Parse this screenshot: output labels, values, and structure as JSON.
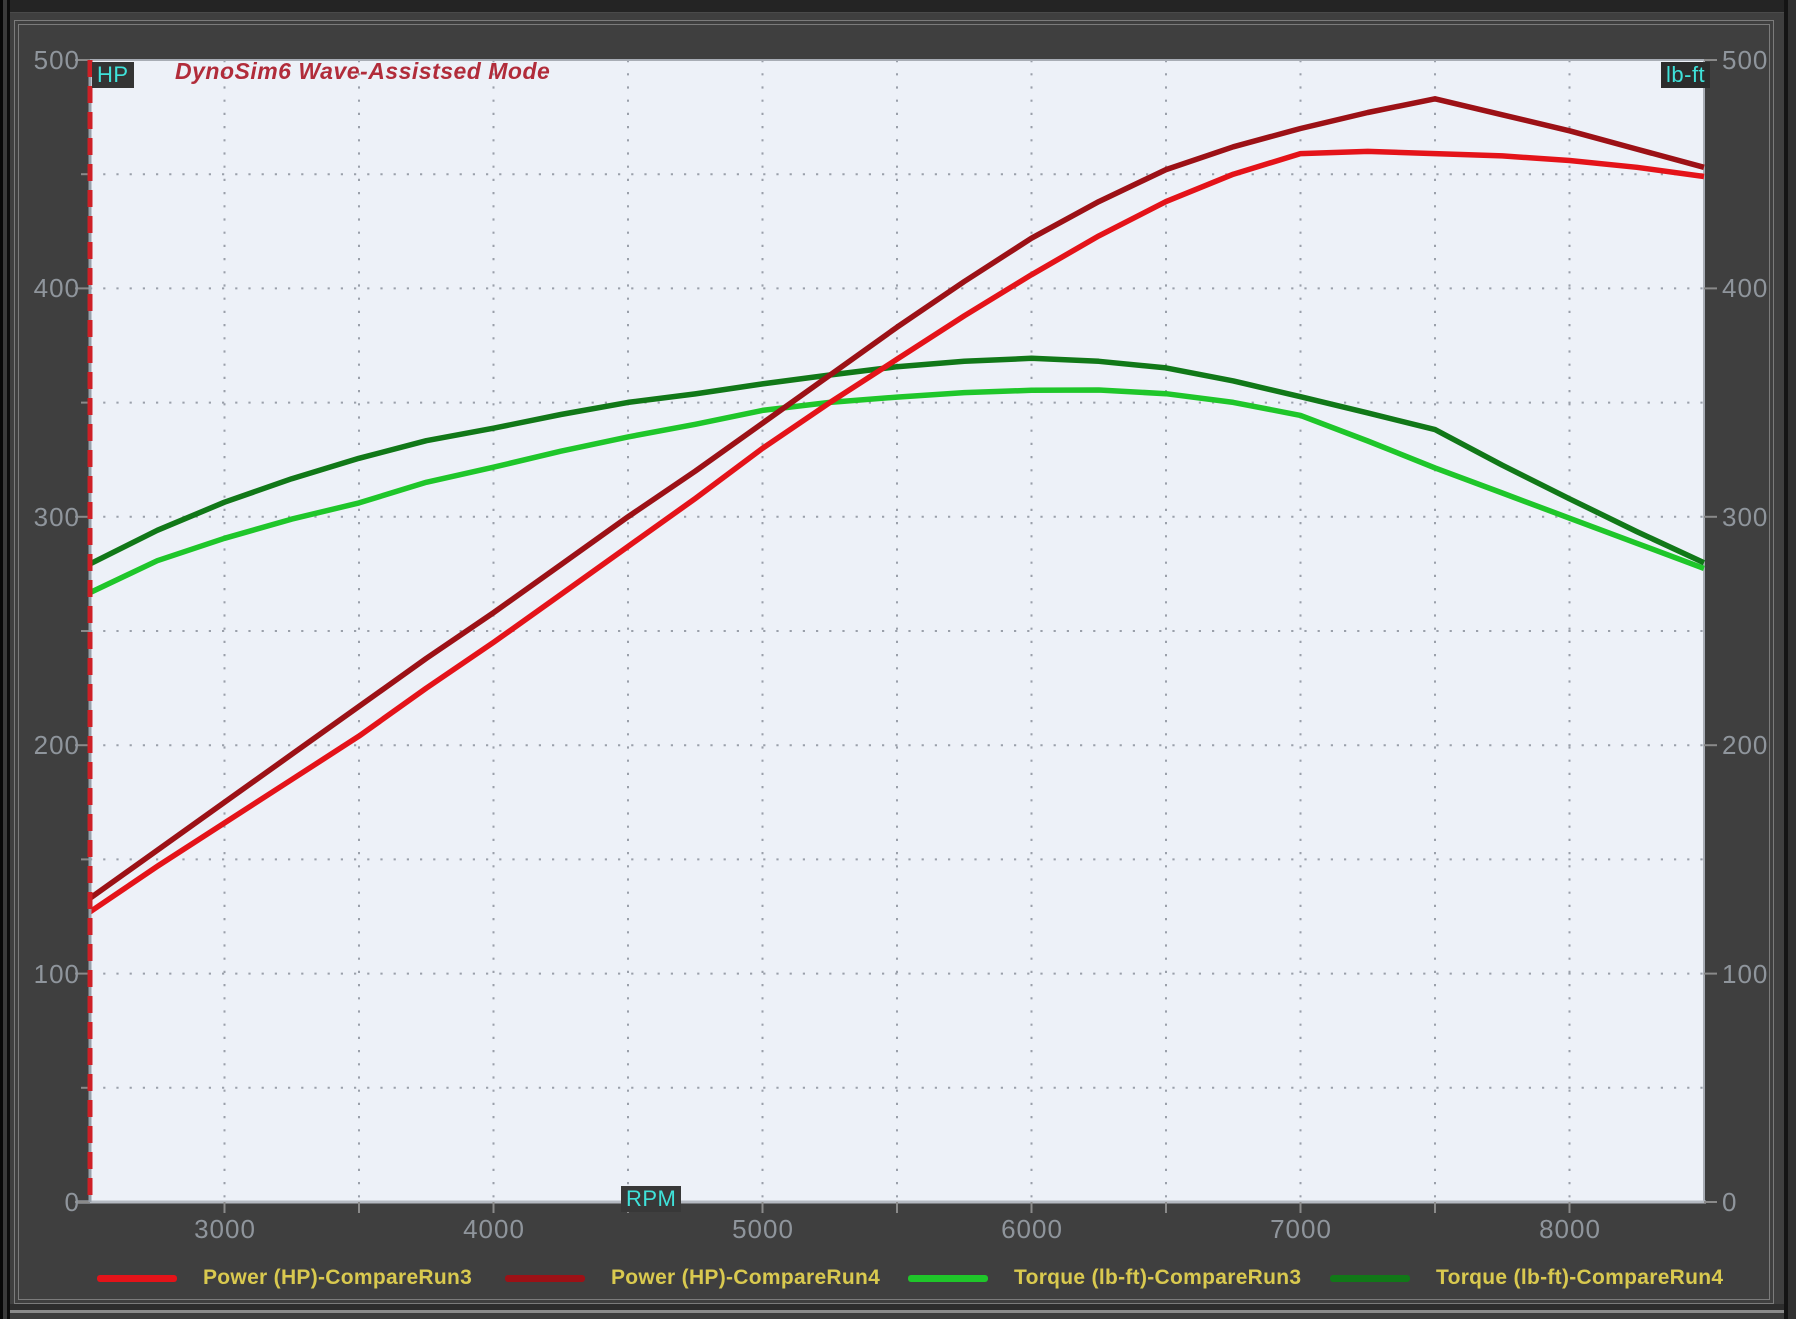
{
  "window": {
    "background": "#3f3f3f",
    "plot_background": "#edf1f8"
  },
  "title": {
    "text": "DynoSim6 Wave-Assistsed Mode",
    "color": "#b12c3a"
  },
  "axis_units": {
    "left": "HP",
    "right": "lb-ft",
    "x": "RPM",
    "text_color": "#3fe2da"
  },
  "chart_data": {
    "type": "line",
    "title": "DynoSim6 Wave-Assistsed Mode",
    "grid": "dotted",
    "legend_position": "bottom",
    "x": [
      2500,
      2750,
      3000,
      3250,
      3500,
      3750,
      4000,
      4250,
      4500,
      4750,
      5000,
      5250,
      5500,
      5750,
      6000,
      6250,
      6500,
      6750,
      7000,
      7250,
      7500,
      7750,
      8000,
      8250,
      8500
    ],
    "x_axis": {
      "min": 2500,
      "max": 8500,
      "grid_step": 500,
      "tick_step": 500,
      "label_step": 1000,
      "tick_labels": [
        "3000",
        "4000",
        "5000",
        "6000",
        "7000",
        "8000"
      ],
      "unit": "RPM"
    },
    "y_axis_left": {
      "min": 0,
      "max": 500,
      "grid_step": 50,
      "label_step": 100,
      "tick_labels": [
        "0",
        "100",
        "200",
        "300",
        "400",
        "500"
      ],
      "unit": "HP"
    },
    "y_axis_right": {
      "min": 0,
      "max": 500,
      "label_step": 100,
      "tick_labels": [
        "0",
        "100",
        "200",
        "300",
        "400",
        "500"
      ],
      "unit": "lb-ft"
    },
    "series": [
      {
        "name": "Power (HP)-CompareRun3",
        "axis": "left",
        "color": "#e41319",
        "values": [
          127,
          147,
          166,
          185,
          204,
          225,
          245,
          266,
          287,
          308,
          330,
          350,
          369,
          388,
          406,
          423,
          438,
          450,
          459,
          460,
          459,
          458,
          456,
          453,
          449
        ]
      },
      {
        "name": "Power (HP)-CompareRun4",
        "axis": "left",
        "color": "#9c1116",
        "values": [
          133,
          154,
          175,
          196,
          217,
          238,
          258,
          279,
          300,
          320,
          341,
          362,
          383,
          403,
          422,
          438,
          452,
          462,
          470,
          477,
          483,
          476,
          469,
          461,
          453
        ]
      },
      {
        "name": "Torque (lb-ft)-CompareRun3",
        "axis": "right",
        "color": "#1fc62a",
        "values": [
          266.8,
          280.8,
          290.6,
          299.0,
          306.1,
          315.1,
          321.7,
          328.7,
          335.0,
          340.5,
          346.6,
          350.1,
          352.4,
          354.4,
          355.4,
          355.5,
          353.9,
          350.1,
          344.4,
          333.2,
          321.4,
          310.4,
          299.4,
          288.4,
          277.4
        ]
      },
      {
        "name": "Torque (lb-ft)-CompareRun4",
        "axis": "right",
        "color": "#117818",
        "values": [
          279.4,
          294.1,
          306.4,
          316.7,
          325.6,
          333.3,
          338.8,
          344.8,
          350.1,
          353.8,
          358.2,
          362.1,
          365.7,
          368.1,
          369.4,
          368.1,
          365.2,
          359.5,
          352.6,
          345.5,
          338.2,
          322.6,
          307.9,
          293.5,
          279.9
        ]
      }
    ],
    "annotations": {
      "left_axis_marker": "red dashed vertical line at left plot edge"
    }
  },
  "legend": {
    "text_color": "#d9c94f",
    "items": [
      {
        "label": "Power (HP)-CompareRun3",
        "color": "#e41319"
      },
      {
        "label": "Power (HP)-CompareRun4",
        "color": "#9c1116"
      },
      {
        "label": "Torque (lb-ft)-CompareRun3",
        "color": "#1fc62a"
      },
      {
        "label": "Torque (lb-ft)-CompareRun4",
        "color": "#117818"
      }
    ]
  }
}
